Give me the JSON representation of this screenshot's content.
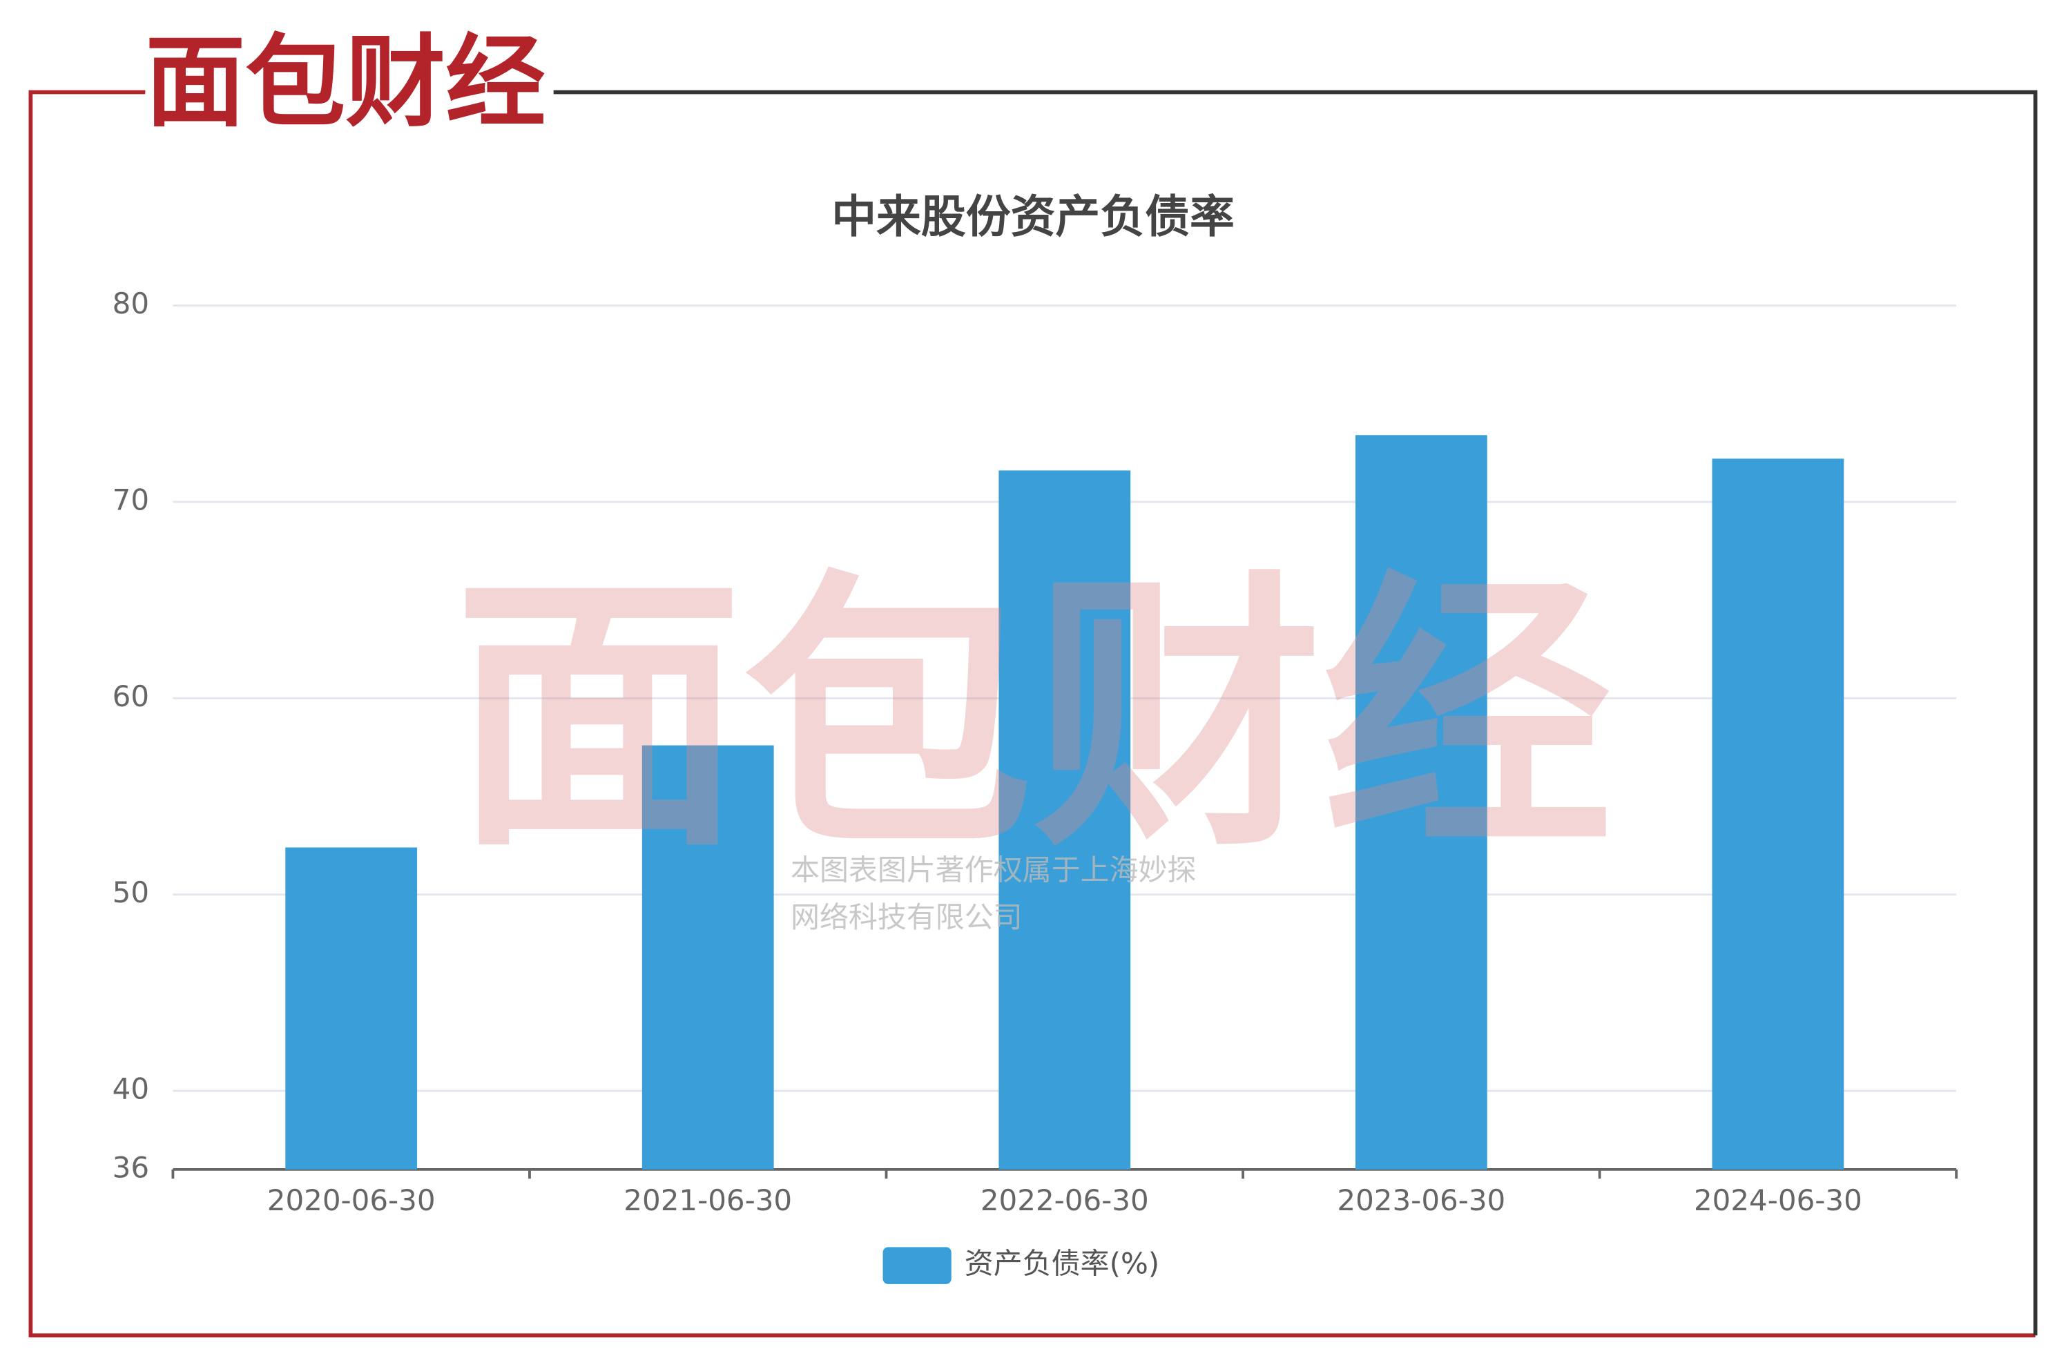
{
  "logo": "面包财经",
  "watermark": [
    "本图表图片著作权属于上海妙探",
    "网络科技有限公司"
  ],
  "chart_data": {
    "type": "bar",
    "title": "中来股份资产负债率",
    "categories": [
      "2020-06-30",
      "2021-06-30",
      "2022-06-30",
      "2023-06-30",
      "2024-06-30"
    ],
    "series": [
      {
        "name": "资产负债率(%)",
        "color": "#3a9fd9",
        "values": [
          52.4,
          57.6,
          71.6,
          73.4,
          72.2
        ]
      }
    ],
    "ylim": [
      36,
      80
    ],
    "yticks": [
      36,
      40,
      50,
      60,
      70,
      80
    ],
    "grid": true
  }
}
